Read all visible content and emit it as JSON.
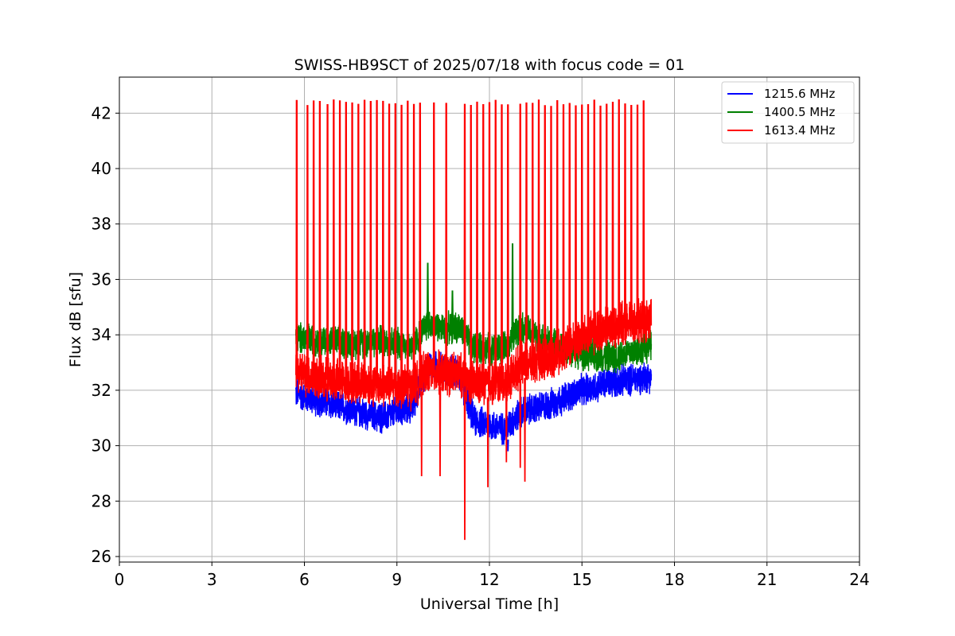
{
  "chart_data": {
    "type": "line",
    "title": "SWISS-HB9SCT of 2025/07/18 with focus code = 01",
    "xlabel": "Universal Time [h]",
    "ylabel": "Flux dB [sfu]",
    "xlim": [
      0,
      24
    ],
    "ylim": [
      25.8,
      43.3
    ],
    "xticks": [
      0,
      3,
      6,
      9,
      12,
      15,
      18,
      21,
      24
    ],
    "yticks": [
      26,
      28,
      30,
      32,
      34,
      36,
      38,
      40,
      42
    ],
    "grid": true,
    "legend_position": "top-right",
    "x_range_observed": [
      5.72,
      17.25
    ],
    "series": [
      {
        "name": "1215.6 MHz",
        "color": "#0000ff",
        "baseline": [
          [
            5.72,
            31.9
          ],
          [
            6.5,
            31.6
          ],
          [
            7.5,
            31.3
          ],
          [
            8.5,
            31.0
          ],
          [
            9.5,
            31.4
          ],
          [
            10.0,
            32.9
          ],
          [
            10.5,
            32.8
          ],
          [
            11.0,
            32.6
          ],
          [
            11.5,
            30.9
          ],
          [
            12.5,
            30.6
          ],
          [
            13.0,
            31.2
          ],
          [
            14.0,
            31.5
          ],
          [
            15.0,
            32.0
          ],
          [
            16.0,
            32.3
          ],
          [
            17.25,
            32.5
          ]
        ],
        "band_halfwidth": 0.55,
        "spikes": [],
        "dips": [
          [
            12.6,
            29.8
          ]
        ]
      },
      {
        "name": "1400.5 MHz",
        "color": "#008000",
        "baseline": [
          [
            5.72,
            33.9
          ],
          [
            6.5,
            33.8
          ],
          [
            7.5,
            33.7
          ],
          [
            8.5,
            33.8
          ],
          [
            9.5,
            33.6
          ],
          [
            10.0,
            34.4
          ],
          [
            10.5,
            34.2
          ],
          [
            11.0,
            34.3
          ],
          [
            11.5,
            33.5
          ],
          [
            12.5,
            33.5
          ],
          [
            13.0,
            34.3
          ],
          [
            14.0,
            33.7
          ],
          [
            15.0,
            33.3
          ],
          [
            16.0,
            33.2
          ],
          [
            17.25,
            33.6
          ]
        ],
        "band_halfwidth": 0.55,
        "spikes": [
          [
            10.0,
            36.6
          ],
          [
            10.8,
            35.6
          ],
          [
            12.75,
            37.3
          ]
        ],
        "dips": []
      },
      {
        "name": "1613.4 MHz",
        "color": "#ff0000",
        "baseline": [
          [
            5.72,
            32.7
          ],
          [
            6.5,
            32.4
          ],
          [
            7.5,
            32.3
          ],
          [
            8.5,
            32.2
          ],
          [
            9.5,
            32.1
          ],
          [
            10.0,
            32.7
          ],
          [
            10.5,
            32.6
          ],
          [
            11.0,
            32.6
          ],
          [
            11.5,
            32.2
          ],
          [
            12.5,
            32.3
          ],
          [
            13.0,
            32.9
          ],
          [
            14.0,
            33.2
          ],
          [
            15.0,
            33.9
          ],
          [
            16.0,
            34.3
          ],
          [
            17.25,
            34.5
          ]
        ],
        "band_halfwidth": 0.75,
        "spike_peak": 42.35,
        "spike_times": [
          5.75,
          6.1,
          6.3,
          6.5,
          6.75,
          6.95,
          7.15,
          7.35,
          7.55,
          7.75,
          7.95,
          8.15,
          8.35,
          8.55,
          8.75,
          8.95,
          9.15,
          9.35,
          9.55,
          9.75,
          10.2,
          10.6,
          11.2,
          11.4,
          11.6,
          11.8,
          12.0,
          12.2,
          12.4,
          12.6,
          13.0,
          13.2,
          13.4,
          13.6,
          13.8,
          14.0,
          14.2,
          14.4,
          14.6,
          14.8,
          15.0,
          15.2,
          15.4,
          15.6,
          15.8,
          16.0,
          16.2,
          16.4,
          16.6,
          16.8,
          17.0
        ],
        "dips": [
          [
            9.8,
            28.9
          ],
          [
            10.4,
            28.9
          ],
          [
            11.2,
            26.6
          ],
          [
            11.95,
            28.5
          ],
          [
            13.15,
            28.7
          ],
          [
            12.55,
            29.4
          ],
          [
            13.0,
            29.2
          ]
        ]
      }
    ]
  }
}
